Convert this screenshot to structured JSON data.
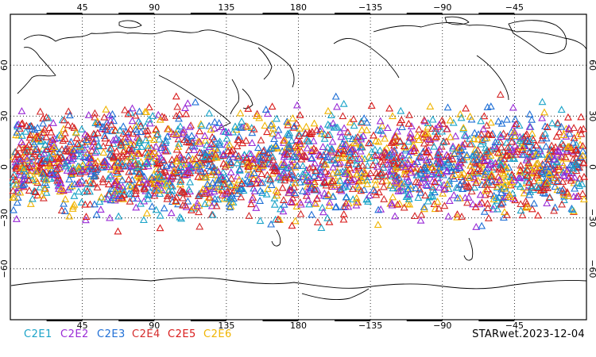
{
  "figure": {
    "caption": "STARwet.2023-12-04",
    "top_longitude_labels": [
      "45",
      "90",
      "135",
      "180",
      "−135",
      "−90",
      "−45"
    ],
    "bottom_longitude_labels": [
      "45",
      "90",
      "135",
      "180",
      "−135",
      "−90",
      "−45"
    ],
    "left_latitude_labels": [
      "60",
      "30",
      "0",
      "−30",
      "−60"
    ],
    "right_latitude_labels": [
      "60",
      "30",
      "0",
      "−30",
      "−60"
    ],
    "longitude_range": [
      0,
      360
    ],
    "latitude_range": [
      -90,
      90
    ],
    "central_longitude": 180,
    "grid": true,
    "legend": [
      {
        "label": "C2E1",
        "color": "#1aa3c8"
      },
      {
        "label": "C2E2",
        "color": "#9a2bd6"
      },
      {
        "label": "C2E3",
        "color": "#1f6fd6"
      },
      {
        "label": "C2E4",
        "color": "#d42a2a"
      },
      {
        "label": "C2E5",
        "color": "#d91a1a"
      },
      {
        "label": "C2E6",
        "color": "#f0b400"
      }
    ],
    "markers": {
      "shape": "triangle",
      "latitude_band": [
        -42,
        45
      ],
      "note": ""
    }
  }
}
